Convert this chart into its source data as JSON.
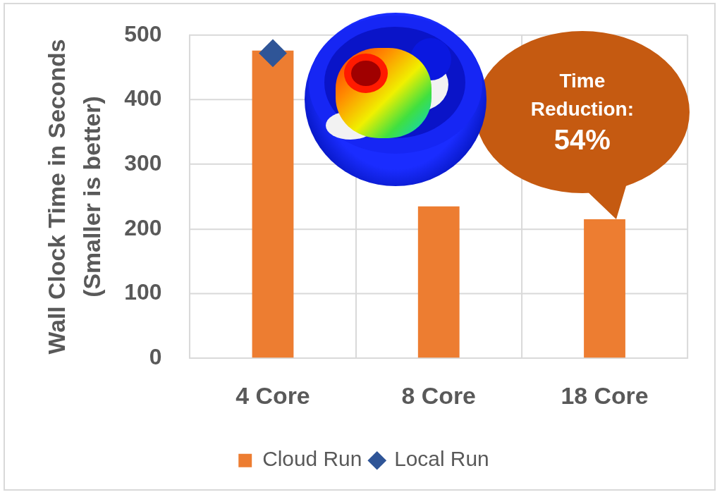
{
  "chart_data": {
    "type": "bar",
    "ylabel": "Wall Clock Time in Seconds\n(Smaller is better)",
    "categories": [
      "4 Core",
      "8 Core",
      "18 Core"
    ],
    "series": [
      {
        "name": "Cloud Run",
        "color": "#ed7d31",
        "values": [
          476,
          235,
          215
        ]
      },
      {
        "name": "Local Run",
        "type": "scatter",
        "color": "#2f5597",
        "x": [
          "4 Core"
        ],
        "values": [
          472
        ],
        "marker": "diamond"
      }
    ],
    "ylim": [
      0,
      500
    ],
    "yticks": [
      0,
      100,
      200,
      300,
      400,
      500
    ],
    "grid": true,
    "legend": "bottom",
    "annotations": [
      {
        "text": "Time Reduction: 54%",
        "x": "18 Core",
        "y": 215
      }
    ]
  }
}
